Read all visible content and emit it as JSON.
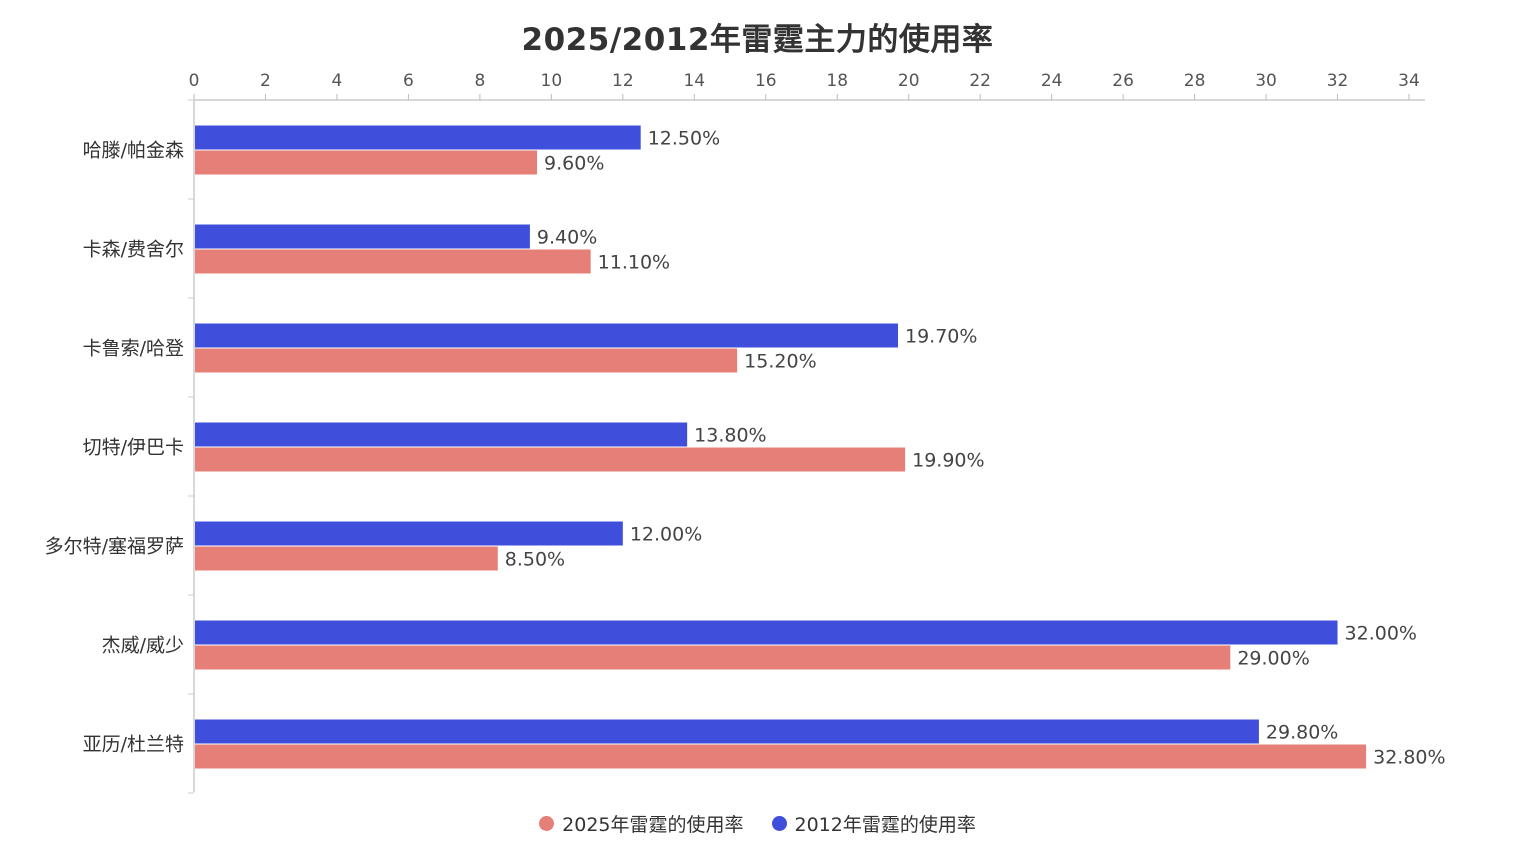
{
  "chart_data": {
    "type": "bar",
    "orientation": "horizontal",
    "title": "2025/2012年雷霆主力的使用率",
    "categories": [
      "哈滕/帕金森",
      "卡森/费舍尔",
      "卡鲁索/哈登",
      "切特/伊巴卡",
      "多尔特/塞福罗萨",
      "杰威/威少",
      "亚历/杜兰特"
    ],
    "series": [
      {
        "name": "2025年雷霆的使用率",
        "color": "#E67F77",
        "values": [
          9.6,
          11.1,
          15.2,
          19.9,
          8.5,
          29.0,
          32.8
        ],
        "labels": [
          "9.60%",
          "11.10%",
          "15.20%",
          "19.90%",
          "8.50%",
          "29.00%",
          "32.80%"
        ]
      },
      {
        "name": "2012年雷霆的使用率",
        "color": "#3F4FDB",
        "values": [
          12.5,
          9.4,
          19.7,
          13.8,
          12.0,
          32.0,
          29.8
        ],
        "labels": [
          "12.50%",
          "9.40%",
          "19.70%",
          "13.80%",
          "12.00%",
          "32.00%",
          "29.80%"
        ]
      }
    ],
    "xlim": [
      0,
      34
    ],
    "x_ticks": [
      0,
      2,
      4,
      6,
      8,
      10,
      12,
      14,
      16,
      18,
      20,
      22,
      24,
      26,
      28,
      30,
      32,
      34
    ],
    "x_axis_position": "top",
    "grid": false,
    "legend_position": "bottom"
  }
}
